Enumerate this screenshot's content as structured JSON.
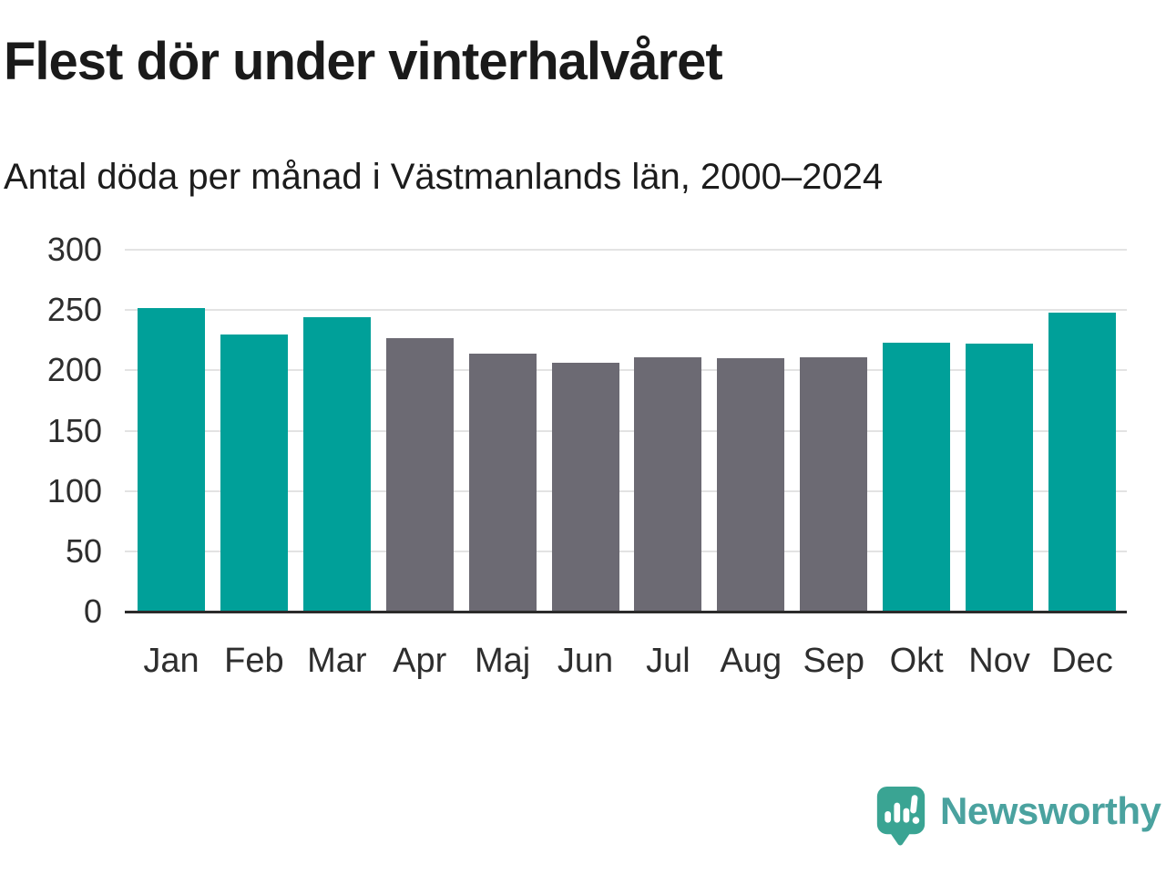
{
  "header": {
    "title": "Flest dör under vinterhalvåret",
    "subtitle": "Antal döda per månad i Västmanlands län, 2000–2024"
  },
  "footer": {
    "brand_name": "Newsworthy",
    "logo_icon": "newsworthy-speech-bubble-chart-icon"
  },
  "colors": {
    "winter_bar": "#00a099",
    "summer_bar": "#6c6a73",
    "gridline": "#e3e3e3",
    "axis_line": "#2b2b2b",
    "title_text": "#1a1a1a",
    "tick_text": "#2e2e2e",
    "brand_teal": "#3aa493",
    "brand_text_teal": "#4aa29f",
    "background": "#ffffff"
  },
  "chart_data": {
    "type": "bar",
    "title": "Flest dör under vinterhalvåret",
    "subtitle": "Antal döda per månad i Västmanlands län, 2000–2024",
    "categories": [
      "Jan",
      "Feb",
      "Mar",
      "Apr",
      "Maj",
      "Jun",
      "Jul",
      "Aug",
      "Sep",
      "Okt",
      "Nov",
      "Dec"
    ],
    "values": [
      252,
      230,
      244,
      227,
      214,
      206,
      211,
      210,
      211,
      223,
      222,
      248
    ],
    "highlighted_winter_months": [
      true,
      true,
      true,
      false,
      false,
      false,
      false,
      false,
      false,
      true,
      true,
      true
    ],
    "xlabel": "",
    "ylabel": "",
    "ylim": [
      0,
      300
    ],
    "yticks": [
      0,
      50,
      100,
      150,
      200,
      250,
      300
    ],
    "grid": true,
    "legend": false
  }
}
